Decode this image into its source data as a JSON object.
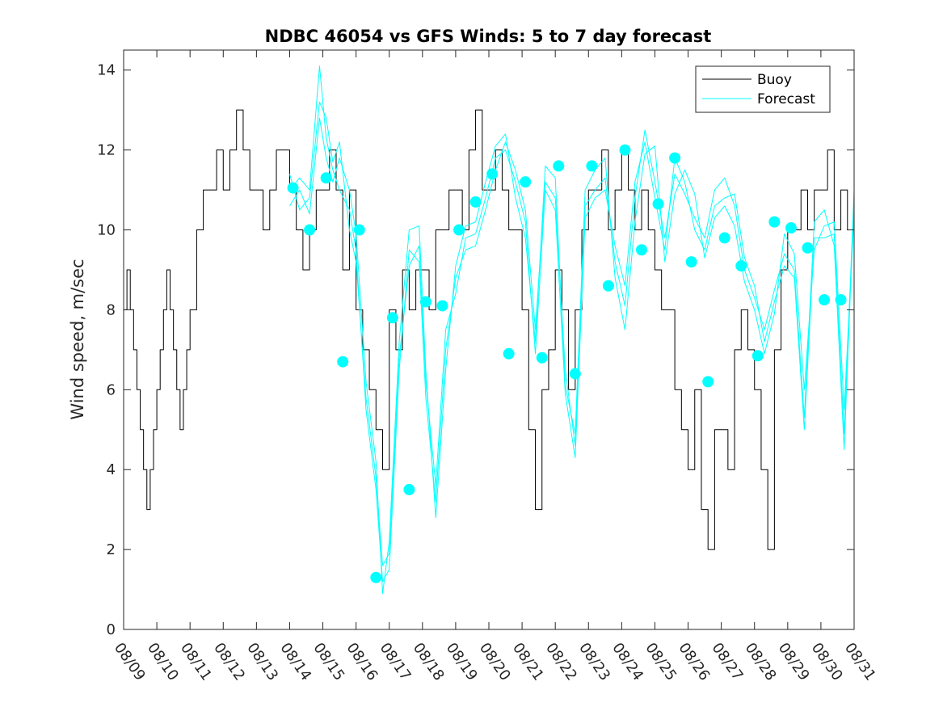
{
  "chart_data": {
    "type": "line",
    "title": "NDBC 46054 vs GFS Winds: 5 to 7 day forecast",
    "xlabel": "",
    "ylabel": "Wind speed, m/sec",
    "xlim": [
      0,
      22
    ],
    "ylim": [
      0,
      14.5
    ],
    "yticks": [
      0,
      2,
      4,
      6,
      8,
      10,
      12,
      14
    ],
    "xtick_labels": [
      "08/09",
      "08/10",
      "08/11",
      "08/12",
      "08/13",
      "08/14",
      "08/15",
      "08/16",
      "08/17",
      "08/18",
      "08/19",
      "08/20",
      "08/21",
      "08/22",
      "08/23",
      "08/24",
      "08/25",
      "08/26",
      "08/27",
      "08/28",
      "08/29",
      "08/30",
      "08/31"
    ],
    "legend": {
      "position": "top-right",
      "entries": [
        "Buoy",
        "Forecast"
      ]
    },
    "colors": {
      "buoy": "#000000",
      "forecast": "#00ffff",
      "axis": "#262626"
    },
    "series": [
      {
        "name": "Buoy",
        "x": [
          0,
          0.1,
          0.2,
          0.3,
          0.4,
          0.5,
          0.6,
          0.7,
          0.8,
          0.9,
          1.0,
          1.1,
          1.2,
          1.3,
          1.4,
          1.5,
          1.6,
          1.7,
          1.8,
          1.9,
          2.0,
          2.2,
          2.4,
          2.6,
          2.8,
          3.0,
          3.2,
          3.4,
          3.6,
          3.8,
          4.0,
          4.2,
          4.4,
          4.6,
          4.8,
          5.0,
          5.2,
          5.4,
          5.6,
          5.8,
          6.0,
          6.2,
          6.4,
          6.6,
          6.8,
          7.0,
          7.2,
          7.4,
          7.6,
          7.8,
          8.0,
          8.2,
          8.4,
          8.6,
          8.8,
          9.0,
          9.2,
          9.4,
          9.6,
          9.8,
          10.0,
          10.2,
          10.4,
          10.6,
          10.8,
          11.0,
          11.2,
          11.4,
          11.6,
          11.8,
          12.0,
          12.2,
          12.4,
          12.6,
          12.8,
          13.0,
          13.2,
          13.4,
          13.6,
          13.8,
          14.0,
          14.2,
          14.4,
          14.6,
          14.8,
          15.0,
          15.2,
          15.4,
          15.6,
          15.8,
          16.0,
          16.2,
          16.4,
          16.6,
          16.8,
          17.0,
          17.2,
          17.4,
          17.6,
          17.8,
          18.0,
          18.2,
          18.4,
          18.6,
          18.8,
          19.0,
          19.2,
          19.4,
          19.6,
          19.8,
          20.0,
          20.2,
          20.4,
          20.6,
          20.8,
          21.0,
          21.2,
          21.4,
          21.6,
          21.8,
          22.0
        ],
        "values": [
          8,
          9,
          8,
          7,
          6,
          5,
          4,
          3,
          4,
          5,
          6,
          7,
          8,
          9,
          8,
          7,
          6,
          5,
          6,
          7,
          8,
          10,
          11,
          11,
          12,
          11,
          12,
          13,
          12,
          11,
          11,
          10,
          11,
          12,
          12,
          11,
          10,
          9,
          10,
          11,
          11,
          12,
          11,
          9,
          11,
          8,
          7,
          6,
          5,
          4,
          8,
          7,
          9,
          8,
          9,
          9,
          8,
          10,
          10,
          11,
          11,
          10,
          12,
          13,
          11,
          11,
          12,
          11,
          10,
          10,
          8,
          5,
          3,
          6,
          7,
          9,
          8,
          6,
          8,
          10,
          11,
          11,
          12,
          10,
          11,
          12,
          11,
          10,
          11,
          10,
          9,
          8,
          8,
          6,
          5,
          4,
          6,
          3,
          2,
          5,
          5,
          4,
          7,
          8,
          7,
          6,
          4,
          2,
          7,
          9,
          10,
          10,
          11,
          10,
          11,
          11,
          12,
          10,
          11,
          10,
          10
        ]
      },
      {
        "name": "Forecast",
        "x": [
          5.0,
          5.3,
          5.6,
          5.9,
          6.1,
          6.3,
          6.5,
          6.8,
          7.0,
          7.3,
          7.6,
          7.8,
          8.0,
          8.3,
          8.6,
          8.9,
          9.1,
          9.4,
          9.7,
          10.0,
          10.3,
          10.6,
          10.9,
          11.2,
          11.5,
          11.8,
          12.1,
          12.4,
          12.7,
          13.0,
          13.3,
          13.6,
          13.9,
          14.2,
          14.5,
          14.8,
          15.1,
          15.4,
          15.7,
          16.0,
          16.3,
          16.6,
          16.9,
          17.2,
          17.5,
          17.8,
          18.1,
          18.4,
          18.7,
          19.0,
          19.3,
          19.6,
          19.9,
          20.2,
          20.5,
          20.8,
          21.1,
          21.4,
          21.7,
          22.0
        ],
        "values": [
          11.0,
          11.3,
          11.0,
          14.1,
          12.3,
          11.5,
          11.0,
          10.5,
          9.5,
          5.5,
          3.5,
          1.2,
          1.5,
          6.5,
          9.5,
          9.2,
          5.8,
          3.2,
          7.0,
          8.8,
          9.5,
          9.6,
          10.5,
          11.5,
          12.2,
          11.5,
          10.5,
          7.5,
          11.2,
          10.8,
          6.5,
          4.6,
          10.6,
          11.0,
          11.3,
          9.2,
          8.1,
          10.8,
          12.5,
          11.2,
          9.8,
          11.4,
          10.9,
          10.3,
          9.8,
          11.0,
          11.3,
          10.6,
          9.0,
          8.3,
          7.5,
          8.5,
          9.4,
          9.0,
          5.3,
          10.2,
          10.5,
          9.6,
          4.5,
          10.8
        ]
      },
      {
        "name": "Forecast",
        "x": [
          5.0,
          5.3,
          5.6,
          5.9,
          6.1,
          6.3,
          6.5,
          6.8,
          7.0,
          7.3,
          7.6,
          7.8,
          8.0,
          8.3,
          8.6,
          8.9,
          9.1,
          9.4,
          9.7,
          10.0,
          10.3,
          10.6,
          10.9,
          11.2,
          11.5,
          11.8,
          12.1,
          12.4,
          12.7,
          13.0,
          13.3,
          13.6,
          13.9,
          14.2,
          14.5,
          14.8,
          15.1,
          15.4,
          15.7,
          16.0,
          16.3,
          16.6,
          16.9,
          17.2,
          17.5,
          17.8,
          18.1,
          18.4,
          18.7,
          19.0,
          19.3,
          19.6,
          19.9,
          20.2,
          20.5,
          20.8,
          21.1,
          21.4,
          21.7,
          22.0
        ],
        "values": [
          10.6,
          11.0,
          10.4,
          12.8,
          11.8,
          11.2,
          11.8,
          11.0,
          9.9,
          6.2,
          4.2,
          0.9,
          2.2,
          7.2,
          10.0,
          10.1,
          6.5,
          2.8,
          6.5,
          9.1,
          10.1,
          10.2,
          11.2,
          12.1,
          12.4,
          10.8,
          9.8,
          7.2,
          11.6,
          11.3,
          6.1,
          4.9,
          11.0,
          11.5,
          11.8,
          8.8,
          7.5,
          10.2,
          11.9,
          12.1,
          9.2,
          10.9,
          11.5,
          10.9,
          9.3,
          10.3,
          10.6,
          10.1,
          8.7,
          8.0,
          6.9,
          7.9,
          9.9,
          9.4,
          6.0,
          9.5,
          10.1,
          10.2,
          5.5,
          10.4
        ]
      },
      {
        "name": "Forecast",
        "x": [
          5.0,
          5.3,
          5.6,
          5.9,
          6.1,
          6.3,
          6.5,
          6.8,
          7.0,
          7.3,
          7.6,
          7.8,
          8.0,
          8.3,
          8.6,
          8.9,
          9.1,
          9.4,
          9.7,
          10.0,
          10.3,
          10.6,
          10.9,
          11.2,
          11.5,
          11.8,
          12.1,
          12.4,
          12.7,
          13.0,
          13.3,
          13.6,
          13.9,
          14.2,
          14.5,
          14.8,
          15.1,
          15.4,
          15.7,
          16.0,
          16.3,
          16.6,
          16.9,
          17.2,
          17.5,
          17.8,
          18.1,
          18.4,
          18.7,
          19.0,
          19.3,
          19.6,
          19.9,
          20.2,
          20.5,
          20.8,
          21.1,
          21.4,
          21.7,
          22.0
        ],
        "values": [
          11.4,
          10.5,
          10.8,
          13.2,
          12.8,
          11.7,
          12.2,
          10.0,
          9.2,
          5.8,
          3.8,
          1.6,
          1.9,
          6.8,
          9.1,
          9.6,
          6.2,
          3.6,
          7.5,
          8.4,
          9.8,
          9.9,
          10.8,
          11.8,
          12.0,
          11.2,
          10.2,
          6.9,
          11.0,
          10.5,
          5.9,
          4.3,
          10.3,
          10.8,
          11.0,
          9.6,
          8.6,
          11.2,
          12.2,
          10.8,
          9.5,
          11.8,
          11.2,
          10.0,
          9.5,
          10.6,
          10.8,
          10.9,
          9.3,
          8.6,
          7.2,
          8.2,
          9.1,
          8.8,
          5.0,
          9.8,
          9.8,
          9.9,
          4.9,
          11.0
        ]
      }
    ],
    "markers": {
      "name": "Forecast points",
      "x": [
        5.1,
        5.6,
        6.1,
        6.6,
        7.1,
        7.6,
        8.1,
        8.6,
        9.1,
        9.6,
        10.1,
        10.6,
        11.1,
        11.6,
        12.1,
        12.6,
        13.1,
        13.6,
        14.1,
        14.6,
        15.1,
        15.6,
        16.1,
        16.6,
        17.1,
        17.6,
        18.1,
        18.6,
        19.1,
        19.6,
        20.1,
        20.6,
        21.1,
        21.6
      ],
      "values": [
        11.05,
        10.0,
        11.3,
        6.7,
        10.0,
        1.3,
        7.8,
        3.5,
        8.2,
        8.1,
        10.0,
        10.7,
        11.4,
        6.9,
        11.2,
        6.8,
        11.6,
        6.4,
        11.6,
        8.6,
        12.0,
        9.5,
        10.65,
        11.8,
        9.2,
        6.2,
        9.8,
        9.1,
        6.85,
        10.2,
        10.05,
        9.55,
        8.25,
        8.25
      ]
    }
  }
}
